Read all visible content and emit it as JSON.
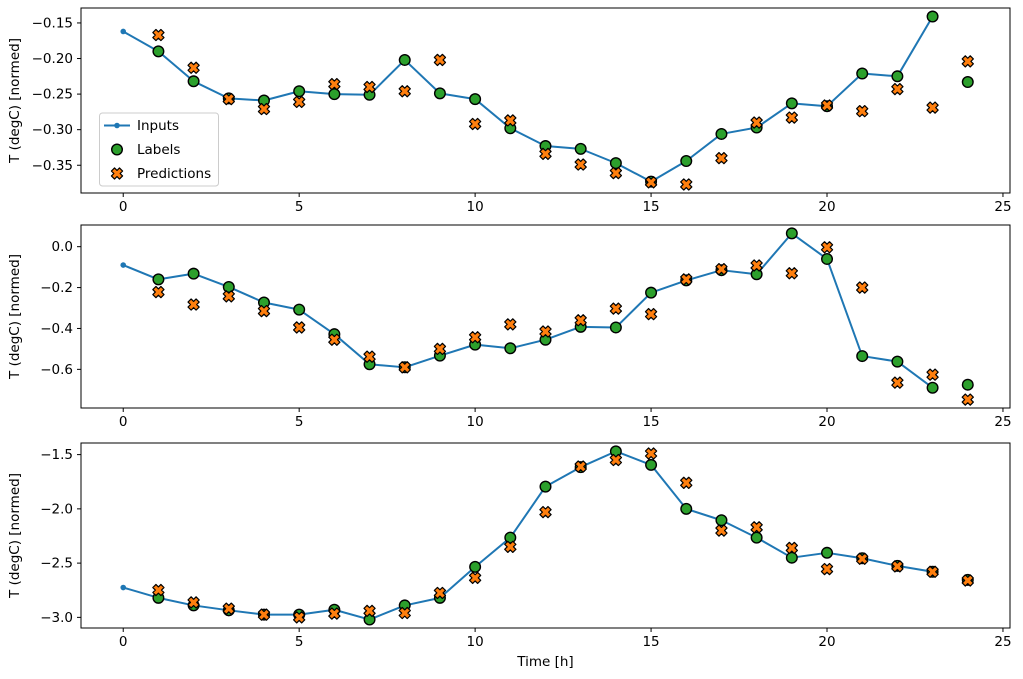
{
  "figure": {
    "background": "#ffffff"
  },
  "colors": {
    "inputs": "#1f77b4",
    "labels": "#2ca02c",
    "predictions": "#ff7f0e",
    "marker_edge": "#000000",
    "spine": "#000000",
    "legend_border": "#cccccc"
  },
  "legend": {
    "entries": [
      {
        "label": "Inputs",
        "marker": "line-dot"
      },
      {
        "label": "Labels",
        "marker": "circle"
      },
      {
        "label": "Predictions",
        "marker": "x-cross"
      }
    ]
  },
  "chart_data": [
    {
      "type": "line",
      "title": "",
      "xlabel": "",
      "ylabel": "T (degC) [normed]",
      "xlim": [
        -1.2,
        25.2
      ],
      "ylim": [
        -0.389,
        -0.129
      ],
      "grid": false,
      "legend_visible": true,
      "legend_position": "center left",
      "xticks": {
        "values": [
          0,
          5,
          10,
          15,
          20,
          25
        ],
        "labels": [
          "0",
          "5",
          "10",
          "15",
          "20",
          "25"
        ]
      },
      "yticks": {
        "values": [
          -0.15,
          -0.2,
          -0.25,
          -0.3,
          -0.35
        ],
        "labels": [
          "−0.15",
          "−0.20",
          "−0.25",
          "−0.30",
          "−0.35"
        ]
      },
      "series": [
        {
          "name": "Inputs",
          "style": "line",
          "x": [
            0,
            1,
            2,
            3,
            4,
            5,
            6,
            7,
            8,
            9,
            10,
            11,
            12,
            13,
            14,
            15,
            16,
            17,
            18,
            19,
            20,
            21,
            22,
            23
          ],
          "y": [
            -0.162,
            -0.19,
            -0.232,
            -0.256,
            -0.259,
            -0.246,
            -0.25,
            -0.251,
            -0.202,
            -0.249,
            -0.257,
            -0.298,
            -0.323,
            -0.327,
            -0.347,
            -0.373,
            -0.344,
            -0.306,
            -0.297,
            -0.263,
            -0.267,
            -0.221,
            -0.225,
            -0.141
          ]
        },
        {
          "name": "Labels",
          "style": "scatter-circle",
          "x": [
            1,
            2,
            3,
            4,
            5,
            6,
            7,
            8,
            9,
            10,
            11,
            12,
            13,
            14,
            15,
            16,
            17,
            18,
            19,
            20,
            21,
            22,
            23,
            24
          ],
          "y": [
            -0.19,
            -0.232,
            -0.256,
            -0.259,
            -0.246,
            -0.25,
            -0.251,
            -0.202,
            -0.249,
            -0.257,
            -0.298,
            -0.323,
            -0.327,
            -0.347,
            -0.373,
            -0.344,
            -0.306,
            -0.297,
            -0.263,
            -0.267,
            -0.221,
            -0.225,
            -0.141,
            -0.233
          ]
        },
        {
          "name": "Predictions",
          "style": "scatter-x",
          "x": [
            1,
            2,
            3,
            4,
            5,
            6,
            7,
            8,
            9,
            10,
            11,
            12,
            13,
            14,
            15,
            16,
            17,
            18,
            19,
            20,
            21,
            22,
            23,
            24
          ],
          "y": [
            -0.167,
            -0.213,
            -0.257,
            -0.271,
            -0.261,
            -0.236,
            -0.24,
            -0.246,
            -0.202,
            -0.292,
            -0.287,
            -0.334,
            -0.349,
            -0.361,
            -0.374,
            -0.377,
            -0.34,
            -0.29,
            -0.283,
            -0.266,
            -0.274,
            -0.243,
            -0.269,
            -0.204
          ]
        }
      ]
    },
    {
      "type": "line",
      "title": "",
      "xlabel": "",
      "ylabel": "T (degC) [normed]",
      "xlim": [
        -1.2,
        25.2
      ],
      "ylim": [
        -0.789,
        0.106
      ],
      "grid": false,
      "legend_visible": false,
      "xticks": {
        "values": [
          0,
          5,
          10,
          15,
          20,
          25
        ],
        "labels": [
          "0",
          "5",
          "10",
          "15",
          "20",
          "25"
        ]
      },
      "yticks": {
        "values": [
          0.0,
          -0.2,
          -0.4,
          -0.6
        ],
        "labels": [
          "0.0",
          "−0.2",
          "−0.4",
          "−0.6"
        ]
      },
      "series": [
        {
          "name": "Inputs",
          "style": "line",
          "x": [
            0,
            1,
            2,
            3,
            4,
            5,
            6,
            7,
            8,
            9,
            10,
            11,
            12,
            13,
            14,
            15,
            16,
            17,
            18,
            19,
            20,
            21,
            22,
            23
          ],
          "y": [
            -0.09,
            -0.16,
            -0.132,
            -0.197,
            -0.273,
            -0.308,
            -0.428,
            -0.575,
            -0.59,
            -0.533,
            -0.479,
            -0.497,
            -0.455,
            -0.392,
            -0.395,
            -0.225,
            -0.165,
            -0.115,
            -0.135,
            0.065,
            -0.06,
            -0.535,
            -0.562,
            -0.69
          ]
        },
        {
          "name": "Labels",
          "style": "scatter-circle",
          "x": [
            1,
            2,
            3,
            4,
            5,
            6,
            7,
            8,
            9,
            10,
            11,
            12,
            13,
            14,
            15,
            16,
            17,
            18,
            19,
            20,
            21,
            22,
            23,
            24
          ],
          "y": [
            -0.16,
            -0.132,
            -0.197,
            -0.273,
            -0.308,
            -0.428,
            -0.575,
            -0.59,
            -0.533,
            -0.479,
            -0.497,
            -0.455,
            -0.392,
            -0.395,
            -0.225,
            -0.165,
            -0.115,
            -0.135,
            0.065,
            -0.06,
            -0.535,
            -0.562,
            -0.69,
            -0.675
          ]
        },
        {
          "name": "Predictions",
          "style": "scatter-x",
          "x": [
            1,
            2,
            3,
            4,
            5,
            6,
            7,
            8,
            9,
            10,
            11,
            12,
            13,
            14,
            15,
            16,
            17,
            18,
            19,
            20,
            21,
            22,
            23,
            24
          ],
          "y": [
            -0.222,
            -0.283,
            -0.243,
            -0.315,
            -0.395,
            -0.455,
            -0.538,
            -0.59,
            -0.5,
            -0.443,
            -0.38,
            -0.415,
            -0.36,
            -0.303,
            -0.33,
            -0.16,
            -0.11,
            -0.092,
            -0.13,
            -0.003,
            -0.2,
            -0.665,
            -0.626,
            -0.748
          ]
        }
      ]
    },
    {
      "type": "line",
      "title": "",
      "xlabel": "Time [h]",
      "ylabel": "T (degC) [normed]",
      "xlim": [
        -1.2,
        25.2
      ],
      "ylim": [
        -3.098,
        -1.393
      ],
      "grid": false,
      "legend_visible": false,
      "xticks": {
        "values": [
          0,
          5,
          10,
          15,
          20,
          25
        ],
        "labels": [
          "0",
          "5",
          "10",
          "15",
          "20",
          "25"
        ]
      },
      "yticks": {
        "values": [
          -1.5,
          -2.0,
          -2.5,
          -3.0
        ],
        "labels": [
          "−1.5",
          "−2.0",
          "−2.5",
          "−3.0"
        ]
      },
      "series": [
        {
          "name": "Inputs",
          "style": "line",
          "x": [
            0,
            1,
            2,
            3,
            4,
            5,
            6,
            7,
            8,
            9,
            10,
            11,
            12,
            13,
            14,
            15,
            16,
            17,
            18,
            19,
            20,
            21,
            22,
            23
          ],
          "y": [
            -2.725,
            -2.82,
            -2.89,
            -2.935,
            -2.975,
            -2.975,
            -2.93,
            -3.02,
            -2.89,
            -2.82,
            -2.535,
            -2.265,
            -1.795,
            -1.615,
            -1.47,
            -1.595,
            -2.0,
            -2.105,
            -2.265,
            -2.45,
            -2.405,
            -2.455,
            -2.525,
            -2.58
          ]
        },
        {
          "name": "Labels",
          "style": "scatter-circle",
          "x": [
            1,
            2,
            3,
            4,
            5,
            6,
            7,
            8,
            9,
            10,
            11,
            12,
            13,
            14,
            15,
            16,
            17,
            18,
            19,
            20,
            21,
            22,
            23,
            24
          ],
          "y": [
            -2.82,
            -2.89,
            -2.935,
            -2.975,
            -2.975,
            -2.93,
            -3.02,
            -2.89,
            -2.82,
            -2.535,
            -2.265,
            -1.795,
            -1.615,
            -1.47,
            -1.595,
            -2.0,
            -2.105,
            -2.265,
            -2.45,
            -2.405,
            -2.455,
            -2.525,
            -2.58,
            -2.655
          ]
        },
        {
          "name": "Predictions",
          "style": "scatter-x",
          "x": [
            1,
            2,
            3,
            4,
            5,
            6,
            7,
            8,
            9,
            10,
            11,
            12,
            13,
            14,
            15,
            16,
            17,
            18,
            19,
            20,
            21,
            22,
            23,
            24
          ],
          "y": [
            -2.748,
            -2.862,
            -2.92,
            -2.975,
            -3.0,
            -2.965,
            -2.94,
            -2.96,
            -2.775,
            -2.636,
            -2.35,
            -2.03,
            -1.61,
            -1.55,
            -1.49,
            -1.76,
            -2.2,
            -2.17,
            -2.36,
            -2.555,
            -2.46,
            -2.53,
            -2.58,
            -2.66
          ]
        }
      ]
    }
  ]
}
